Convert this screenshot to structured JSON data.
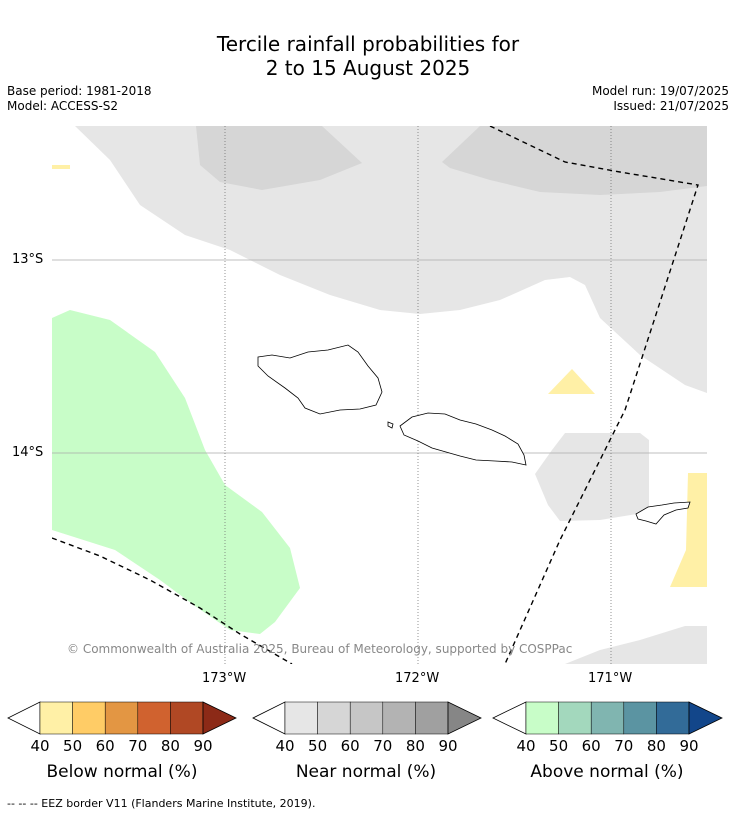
{
  "title_line1": "Tercile rainfall probabilities for",
  "title_line2": "2 to 15 August 2025",
  "meta": {
    "base_period": "Base period: 1981-2018",
    "model": "Model: ACCESS-S2",
    "model_run": "Model run: 19/07/2025",
    "issued": "Issued: 21/07/2025"
  },
  "map": {
    "lat_labels": [
      "13°S",
      "14°S"
    ],
    "lon_labels": [
      "173°W",
      "172°W",
      "171°W"
    ],
    "copyright": "© Commonwealth of Australia 2025, Bureau of Meteorology, supported by COSPPac",
    "colors": {
      "below_40": "#fff0a6",
      "near_40": "#e6e6e6",
      "near_50": "#d6d6d6",
      "above_40": "#c8fdc8",
      "coast": "#000000"
    }
  },
  "colorbars": [
    {
      "label": "Below normal (%)",
      "ticks": [
        "40",
        "50",
        "60",
        "70",
        "80",
        "90"
      ],
      "colors": [
        "#fff0a6",
        "#ffcc66",
        "#e39643",
        "#d0622f",
        "#b04824",
        "#8c2a17"
      ]
    },
    {
      "label": "Near normal (%)",
      "ticks": [
        "40",
        "50",
        "60",
        "70",
        "80",
        "90"
      ],
      "colors": [
        "#e6e6e6",
        "#d6d6d6",
        "#c6c6c6",
        "#b3b3b3",
        "#a0a0a0",
        "#868686"
      ]
    },
    {
      "label": "Above normal (%)",
      "ticks": [
        "40",
        "50",
        "60",
        "70",
        "80",
        "90"
      ],
      "colors": [
        "#c8fdc8",
        "#a3d8bd",
        "#80b5b0",
        "#5b94a2",
        "#326b98",
        "#12468a"
      ]
    }
  ],
  "footer": "-- -- -- EEZ border V11 (Flanders Marine Institute, 2019)."
}
